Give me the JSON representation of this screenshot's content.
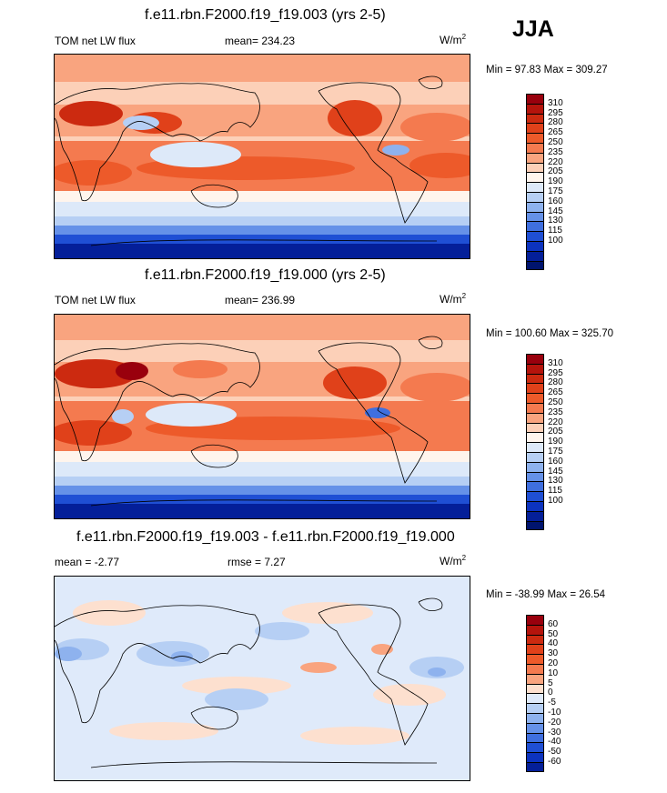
{
  "season": "JJA",
  "panels": [
    {
      "title": "f.e11.rbn.F2000.f19_f19.003 (yrs 2-5)",
      "left_label": "TOM net LW flux",
      "center_label": "mean= 234.23",
      "units": "W/m",
      "units_sup": "2",
      "minmax": "Min =  97.83 Max = 309.27",
      "colorbar_labels": [
        "310",
        "295",
        "280",
        "265",
        "250",
        "235",
        "220",
        "205",
        "190",
        "175",
        "160",
        "145",
        "130",
        "115",
        "100"
      ],
      "colors": [
        "#99000d",
        "#b5140c",
        "#cc2a10",
        "#e0411a",
        "#ed5a2a",
        "#f47a4f",
        "#f9a47f",
        "#fcd0b8",
        "#fff5ed",
        "#dde9f9",
        "#b6cff4",
        "#8eb2ee",
        "#6591e8",
        "#3f6fdf",
        "#1f4fd4",
        "#0c33bf",
        "#041f99",
        "#00146e"
      ]
    },
    {
      "title": "f.e11.rbn.F2000.f19_f19.000 (yrs 2-5)",
      "left_label": "TOM net LW flux",
      "center_label": "mean= 236.99",
      "units": "W/m",
      "units_sup": "2",
      "minmax": "Min = 100.60 Max = 325.70",
      "colorbar_labels": [
        "310",
        "295",
        "280",
        "265",
        "250",
        "235",
        "220",
        "205",
        "190",
        "175",
        "160",
        "145",
        "130",
        "115",
        "100"
      ],
      "colors": [
        "#99000d",
        "#b5140c",
        "#cc2a10",
        "#e0411a",
        "#ed5a2a",
        "#f47a4f",
        "#f9a47f",
        "#fcd0b8",
        "#fff5ed",
        "#dde9f9",
        "#b6cff4",
        "#8eb2ee",
        "#6591e8",
        "#3f6fdf",
        "#1f4fd4",
        "#0c33bf",
        "#041f99",
        "#00146e"
      ]
    },
    {
      "title": "f.e11.rbn.F2000.f19_f19.003 - f.e11.rbn.F2000.f19_f19.000",
      "left_label": "mean =  -2.77",
      "center_label": "rmse =   7.27",
      "units": "W/m",
      "units_sup": "2",
      "minmax": "Min = -38.99 Max =  26.54",
      "colorbar_labels": [
        "60",
        "50",
        "40",
        "30",
        "20",
        "10",
        "5",
        "0",
        "-5",
        "-10",
        "-20",
        "-30",
        "-40",
        "-50",
        "-60"
      ],
      "colors": [
        "#99000d",
        "#b5140c",
        "#cc2a10",
        "#e0411a",
        "#ed5a2a",
        "#f47a4f",
        "#f9a47f",
        "#fde0cf",
        "#dfeafa",
        "#b6cff4",
        "#8eb2ee",
        "#6591e8",
        "#3f6fdf",
        "#1f4fd4",
        "#0c33bf",
        "#041f99"
      ]
    }
  ]
}
